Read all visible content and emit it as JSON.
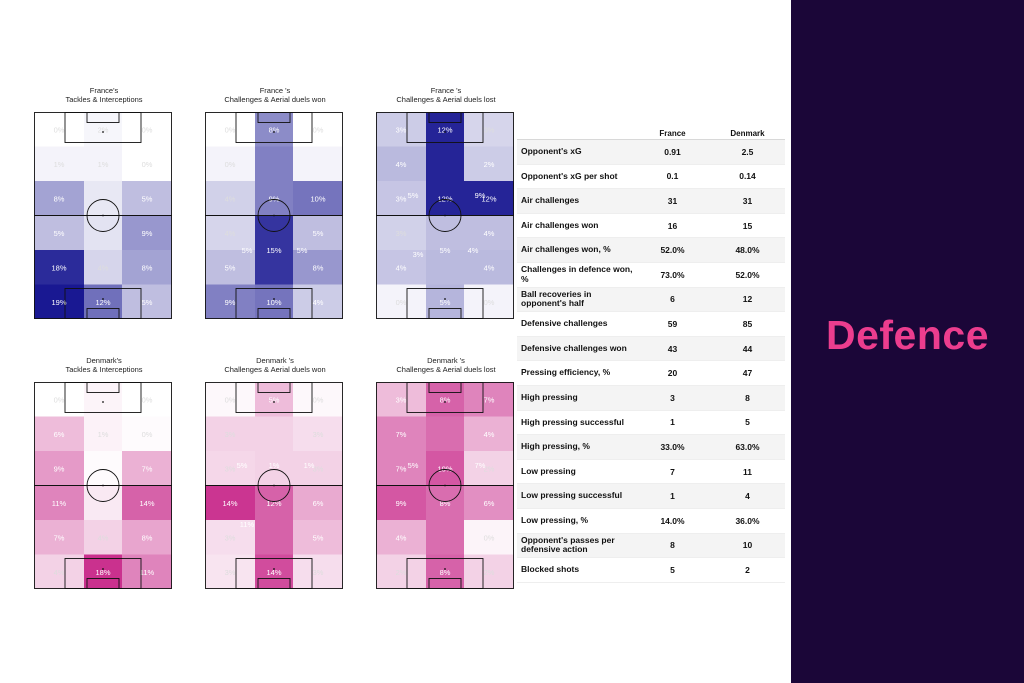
{
  "sidebar": {
    "title": "Defence",
    "background": "#1b0638",
    "accent": "#ec3d8e"
  },
  "chart_data": [
    {
      "type": "heatmap",
      "team": "France",
      "color": "#0d0c8c",
      "title_line1": "France's",
      "title_line2": "Tackles & Interceptions",
      "zones": [
        [
          "0%",
          "2%",
          "0%"
        ],
        [
          "1%",
          "1%",
          "0%"
        ],
        [
          "8%",
          "",
          "5%"
        ],
        [
          "5%",
          "",
          "9%"
        ],
        [
          "18%",
          "4%",
          "8%"
        ],
        [
          "19%",
          "12%",
          "5%"
        ]
      ],
      "weights": [
        [
          0,
          0.04,
          0
        ],
        [
          0.05,
          0.05,
          0
        ],
        [
          0.4,
          0.1,
          0.28
        ],
        [
          0.28,
          0.12,
          0.45
        ],
        [
          0.92,
          0.18,
          0.4
        ],
        [
          1.0,
          0.62,
          0.28
        ]
      ],
      "cells": []
    },
    {
      "type": "heatmap",
      "team": "France",
      "color": "#0d0c8c",
      "title_line1": "France 's",
      "title_line2": "Challenges & Aerial duels won",
      "zones": [
        [
          "0%",
          "8%",
          "0%"
        ],
        [
          "0%",
          "",
          ""
        ],
        [
          "4%",
          "9%",
          "10%"
        ],
        [
          "4%",
          "",
          "5%"
        ],
        [
          "5%",
          "",
          "8%"
        ],
        [
          "9%",
          "10%",
          "4%"
        ]
      ],
      "weights": [
        [
          0,
          0.5,
          0
        ],
        [
          0.05,
          0.55,
          0.05
        ],
        [
          0.2,
          0.55,
          0.6
        ],
        [
          0.18,
          0.88,
          0.28
        ],
        [
          0.28,
          0.88,
          0.45
        ],
        [
          0.55,
          0.6,
          0.22
        ]
      ],
      "cells": [
        {
          "label": "5%",
          "pos": "left"
        },
        {
          "label": "15%",
          "pos": "mid"
        },
        {
          "label": "5%",
          "pos": "right"
        }
      ]
    },
    {
      "type": "heatmap",
      "team": "France",
      "color": "#0d0c8c",
      "title_line1": "France 's",
      "title_line2": "Challenges & Aerial duels lost",
      "zones": [
        [
          "3%",
          "12%",
          "3%"
        ],
        [
          "4%",
          "",
          "2%"
        ],
        [
          "3%",
          "12%",
          "12%"
        ],
        [
          "3%",
          "",
          "4%"
        ],
        [
          "4%",
          "",
          "4%"
        ],
        [
          "0%",
          "5%",
          "0%"
        ]
      ],
      "weights": [
        [
          0.22,
          0.95,
          0.18
        ],
        [
          0.3,
          0.95,
          0.22
        ],
        [
          0.25,
          0.95,
          0.95
        ],
        [
          0.2,
          0.28,
          0.28
        ],
        [
          0.25,
          0.3,
          0.3
        ],
        [
          0.05,
          0.32,
          0.05
        ]
      ],
      "cells": [
        {
          "label": "5%",
          "pos": "innerL1"
        },
        {
          "label": "9%",
          "pos": "innerR1"
        },
        {
          "label": "3%",
          "pos": "innerL2"
        },
        {
          "label": "5%",
          "pos": "mid2"
        },
        {
          "label": "4%",
          "pos": "innerR2"
        }
      ]
    },
    {
      "type": "heatmap",
      "team": "Denmark",
      "color": "#c2137e",
      "title_line1": "Denmark's",
      "title_line2": "Tackles & Interceptions",
      "zones": [
        [
          "0%",
          "",
          "0%"
        ],
        [
          "6%",
          "1%",
          "0%"
        ],
        [
          "9%",
          "",
          "7%"
        ],
        [
          "11%",
          "",
          "14%"
        ],
        [
          "7%",
          "4%",
          "8%"
        ],
        [
          "4%",
          "18%",
          "11%"
        ]
      ],
      "weights": [
        [
          0,
          0.05,
          0
        ],
        [
          0.3,
          0.06,
          0.02
        ],
        [
          0.45,
          0.02,
          0.35
        ],
        [
          0.55,
          0.1,
          0.7
        ],
        [
          0.35,
          0.2,
          0.4
        ],
        [
          0.2,
          0.92,
          0.55
        ]
      ],
      "cells": []
    },
    {
      "type": "heatmap",
      "team": "Denmark",
      "color": "#c2137e",
      "title_line1": "Denmark 's",
      "title_line2": "Challenges & Aerial duels won",
      "zones": [
        [
          "0%",
          "5%",
          "0%"
        ],
        [
          "3%",
          "",
          "3%"
        ],
        [
          "3%",
          "",
          "3%"
        ],
        [
          "14%",
          "12%",
          "6%"
        ],
        [
          "3%",
          "",
          "5%"
        ],
        [
          "3%",
          "14%",
          "3%"
        ]
      ],
      "weights": [
        [
          0.03,
          0.3,
          0.03
        ],
        [
          0.2,
          0.2,
          0.15
        ],
        [
          0.18,
          0.2,
          0.2
        ],
        [
          0.9,
          0.7,
          0.38
        ],
        [
          0.15,
          0.7,
          0.3
        ],
        [
          0.12,
          0.8,
          0.15
        ]
      ],
      "cells": [
        {
          "label": "5%",
          "pos": "innerL1"
        },
        {
          "label": "1%",
          "pos": "mid1"
        },
        {
          "label": "1%",
          "pos": "innerR1"
        },
        {
          "label": "11%",
          "pos": "innerL2"
        }
      ]
    },
    {
      "type": "heatmap",
      "team": "Denmark",
      "color": "#c2137e",
      "title_line1": "Denmark 's",
      "title_line2": "Challenges & Aerial duels lost",
      "zones": [
        [
          "3%",
          "8%",
          "7%"
        ],
        [
          "7%",
          "",
          "4%"
        ],
        [
          "7%",
          "10%",
          "2%"
        ],
        [
          "9%",
          "8%",
          "6%"
        ],
        [
          "4%",
          "",
          "0%"
        ],
        [
          "2%",
          "8%",
          "2%"
        ]
      ],
      "weights": [
        [
          0.3,
          0.7,
          0.55
        ],
        [
          0.55,
          0.65,
          0.35
        ],
        [
          0.55,
          0.75,
          0.2
        ],
        [
          0.75,
          0.65,
          0.5
        ],
        [
          0.35,
          0.65,
          0.05
        ],
        [
          0.2,
          0.7,
          0.2
        ]
      ],
      "cells": [
        {
          "label": "5%",
          "pos": "innerL1"
        },
        {
          "label": "7%",
          "pos": "innerR1"
        }
      ]
    }
  ],
  "stats": {
    "columns": [
      "France",
      "Denmark"
    ],
    "rows": [
      {
        "label": "Opponent's xG",
        "france": "0.91",
        "denmark": "2.5"
      },
      {
        "label": "Opponent's xG per shot",
        "france": "0.1",
        "denmark": "0.14"
      },
      {
        "label": "Air challenges",
        "france": "31",
        "denmark": "31"
      },
      {
        "label": "Air challenges won",
        "france": "16",
        "denmark": "15"
      },
      {
        "label": "Air challenges won, %",
        "france": "52.0%",
        "denmark": "48.0%"
      },
      {
        "label": "Challenges in defence won, %",
        "france": "73.0%",
        "denmark": "52.0%"
      },
      {
        "label": "Ball recoveries in opponent's half",
        "france": "6",
        "denmark": "12"
      },
      {
        "label": "Defensive challenges",
        "france": "59",
        "denmark": "85"
      },
      {
        "label": "Defensive challenges won",
        "france": "43",
        "denmark": "44"
      },
      {
        "label": "Pressing efficiency, %",
        "france": "20",
        "denmark": "47"
      },
      {
        "label": "High pressing",
        "france": "3",
        "denmark": "8"
      },
      {
        "label": "High pressing successful",
        "france": "1",
        "denmark": "5"
      },
      {
        "label": "High pressing, %",
        "france": "33.0%",
        "denmark": "63.0%"
      },
      {
        "label": "Low pressing",
        "france": "7",
        "denmark": "11"
      },
      {
        "label": "Low pressing successful",
        "france": "1",
        "denmark": "4"
      },
      {
        "label": "Low pressing, %",
        "france": "14.0%",
        "denmark": "36.0%"
      },
      {
        "label": "Opponent's passes per defensive action",
        "france": "8",
        "denmark": "10"
      },
      {
        "label": "Blocked shots",
        "france": "5",
        "denmark": "2"
      }
    ]
  }
}
